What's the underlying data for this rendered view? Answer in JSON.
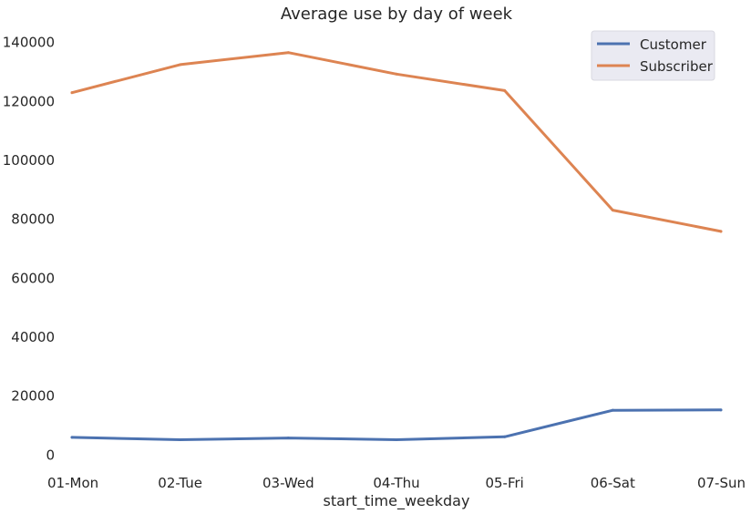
{
  "chart_data": {
    "type": "line",
    "title": "Average use by day of week",
    "xlabel": "start_time_weekday",
    "ylabel": "",
    "categories": [
      "01-Mon",
      "02-Tue",
      "03-Wed",
      "04-Thu",
      "05-Fri",
      "06-Sat",
      "07-Sun"
    ],
    "series": [
      {
        "name": "Customer",
        "color": "#4c72b0",
        "values": [
          6000,
          5200,
          5800,
          5200,
          6200,
          15200,
          15300
        ]
      },
      {
        "name": "Subscriber",
        "color": "#dd8452",
        "values": [
          123000,
          132500,
          136600,
          129300,
          123700,
          83100,
          75900
        ]
      }
    ],
    "ylim": [
      -3000,
      143000
    ],
    "yticks": [
      0,
      20000,
      40000,
      60000,
      80000,
      100000,
      120000,
      140000
    ],
    "ytick_labels": [
      "0",
      "20000",
      "40000",
      "60000",
      "80000",
      "100000",
      "120000",
      "140000"
    ],
    "grid": false,
    "legend_position": "top-right"
  }
}
